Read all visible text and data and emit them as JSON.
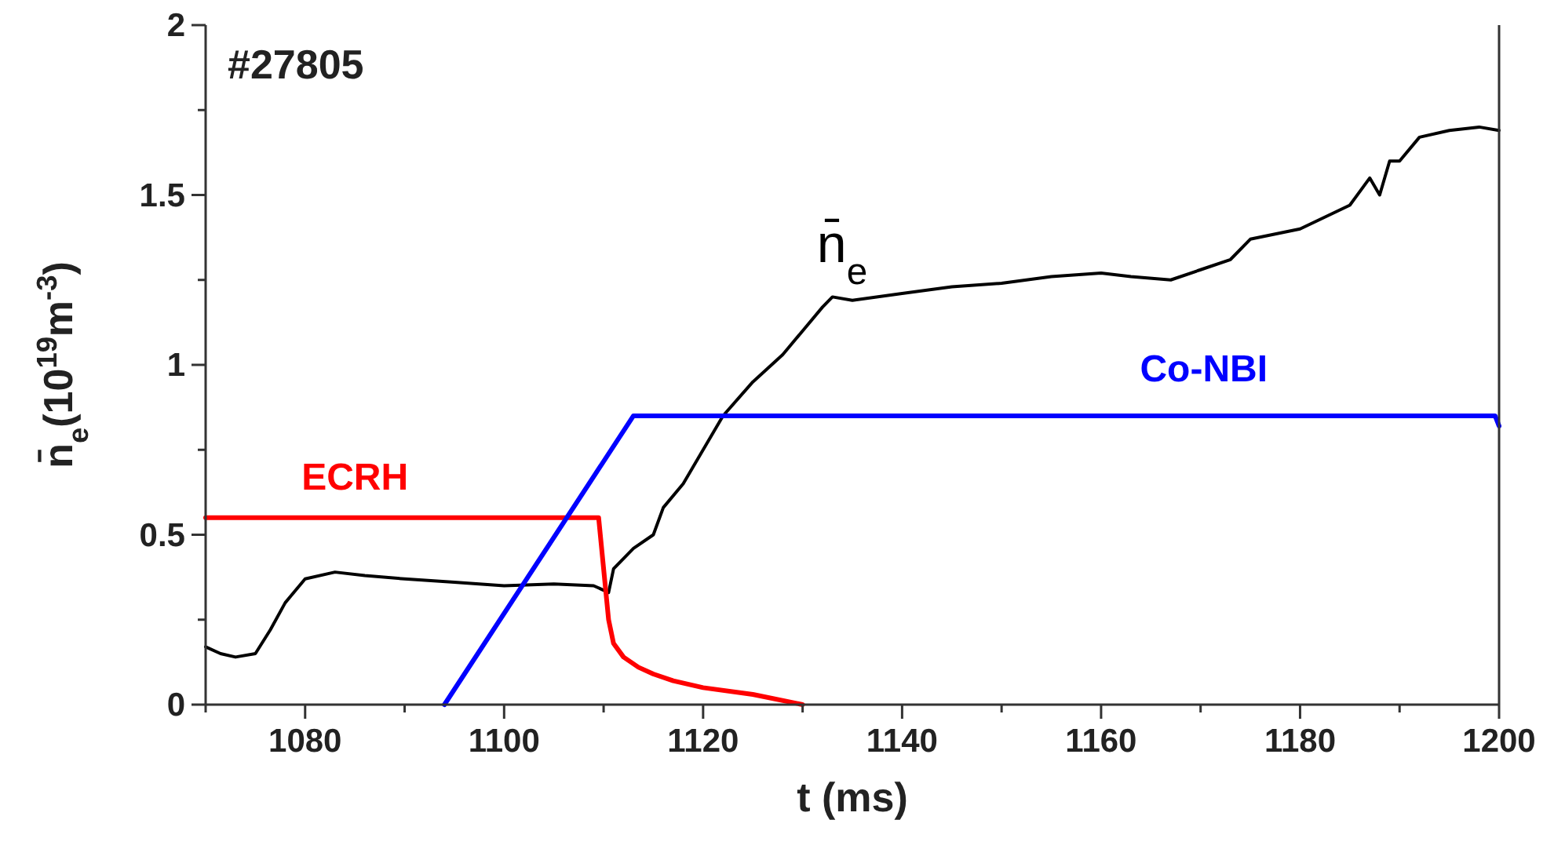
{
  "chart_data": {
    "type": "line",
    "xlabel": "t (ms)",
    "ylabel": "n̄$_{e}$(10$^{19}$m$^{-3}$)",
    "annotations": [
      "#27805"
    ],
    "xlim": [
      1070,
      1200
    ],
    "ylim": [
      0,
      2
    ],
    "xticks": [
      {
        "value": 1070,
        "label": null
      },
      1080,
      {
        "value": 1090,
        "label": null
      },
      1100,
      {
        "value": 1110,
        "label": null
      },
      1120,
      {
        "value": 1130,
        "label": null
      },
      1140,
      {
        "value": 1150,
        "label": null
      },
      1160,
      {
        "value": 1170,
        "label": null
      },
      1180,
      {
        "value": 1190,
        "label": null
      },
      1200
    ],
    "yticks": [
      0,
      {
        "value": 0.25,
        "label": null
      },
      0.5,
      {
        "value": 0.75,
        "label": null
      },
      1,
      {
        "value": 1.25,
        "label": null
      },
      1.5,
      {
        "value": 1.75,
        "label": null
      },
      2
    ],
    "grid": false,
    "marker": "none",
    "line_style": "solid",
    "series": [
      {
        "name": "n̄$_{e}$",
        "color": "#000000",
        "x": [
          1070,
          1071.5,
          1073,
          1075,
          1076.5,
          1078,
          1080,
          1083,
          1086,
          1090,
          1095,
          1100,
          1105,
          1109,
          1110.5,
          1111,
          1113,
          1115,
          1116,
          1118,
          1120,
          1122,
          1125,
          1128,
          1130,
          1132,
          1133,
          1135,
          1140,
          1145,
          1150,
          1155,
          1160,
          1163,
          1167,
          1170,
          1173,
          1175,
          1180,
          1185,
          1187,
          1188,
          1189,
          1190,
          1192,
          1195,
          1198,
          1200
        ],
        "values": [
          0.17,
          0.15,
          0.14,
          0.15,
          0.22,
          0.3,
          0.37,
          0.39,
          0.38,
          0.37,
          0.36,
          0.35,
          0.355,
          0.35,
          0.33,
          0.4,
          0.46,
          0.5,
          0.58,
          0.65,
          0.75,
          0.85,
          0.95,
          1.03,
          1.1,
          1.17,
          1.2,
          1.19,
          1.21,
          1.23,
          1.24,
          1.26,
          1.27,
          1.26,
          1.25,
          1.28,
          1.31,
          1.37,
          1.4,
          1.47,
          1.55,
          1.5,
          1.6,
          1.6,
          1.67,
          1.69,
          1.7,
          1.69
        ]
      },
      {
        "name": "ECRH",
        "color": "#ff0000",
        "x": [
          1070,
          1109.5,
          1110.5,
          1111,
          1112,
          1113.5,
          1115,
          1117,
          1120,
          1125,
          1130
        ],
        "values": [
          0.55,
          0.55,
          0.25,
          0.18,
          0.14,
          0.11,
          0.09,
          0.07,
          0.05,
          0.03,
          0
        ]
      },
      {
        "name": "Co-NBI",
        "color": "#0000ff",
        "x": [
          1094,
          1113,
          1199.6,
          1200
        ],
        "values": [
          0,
          0.85,
          0.85,
          0.82
        ]
      }
    ]
  }
}
